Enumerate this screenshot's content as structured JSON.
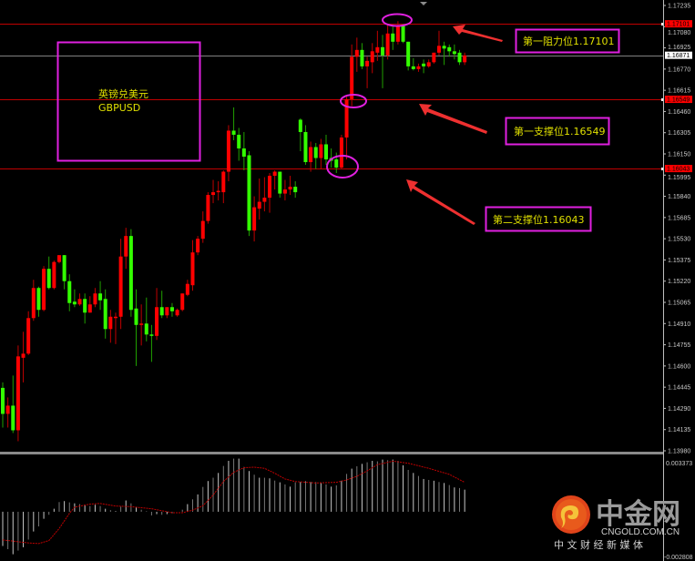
{
  "chart_data": {
    "type": "candlestick",
    "symbol_text": {
      "cn": "英镑兑美元",
      "en": "GBPUSD"
    },
    "colors": {
      "up": "#ff0000",
      "down": "#33ff00",
      "background": "#000000",
      "annotation": "#e020e0",
      "label_text": "#e0e000",
      "level_line": "#c00000",
      "current_price_line": "#808080"
    },
    "price_axis": {
      "ylim": [
        1.1398,
        1.17235
      ],
      "ticks": [
        "1.17235",
        "1.17080",
        "1.16925",
        "1.16770",
        "1.16615",
        "1.16460",
        "1.16305",
        "1.16150",
        "1.15995",
        "1.15840",
        "1.15685",
        "1.15530",
        "1.15375",
        "1.15220",
        "1.15065",
        "1.14910",
        "1.14755",
        "1.14600",
        "1.14445",
        "1.14290",
        "1.14135",
        "1.13980"
      ]
    },
    "current_price": "1.16871",
    "levels": [
      {
        "price": 1.17101,
        "tag": "1.17101",
        "label": "第一阻力位1.17101"
      },
      {
        "price": 1.16549,
        "tag": "1.16549",
        "label": "第一支撑位1.16549"
      },
      {
        "price": 1.16043,
        "tag": "1.16043",
        "label": "第二支撑位1.16043"
      }
    ],
    "ohlc": [
      [
        1.1444,
        1.1448,
        1.1415,
        1.1425
      ],
      [
        1.1425,
        1.1437,
        1.1415,
        1.1431
      ],
      [
        1.1431,
        1.1453,
        1.1411,
        1.1413
      ],
      [
        1.1413,
        1.1475,
        1.1405,
        1.1467
      ],
      [
        1.1466,
        1.1485,
        1.1448,
        1.1469
      ],
      [
        1.1469,
        1.15,
        1.1468,
        1.1495
      ],
      [
        1.1495,
        1.1523,
        1.1493,
        1.1517
      ],
      [
        1.1517,
        1.1518,
        1.1496,
        1.1501
      ],
      [
        1.1501,
        1.1533,
        1.15,
        1.1531
      ],
      [
        1.1531,
        1.154,
        1.1516,
        1.1517
      ],
      [
        1.1517,
        1.1537,
        1.1516,
        1.1536
      ],
      [
        1.1536,
        1.1541,
        1.1535,
        1.1541
      ],
      [
        1.1541,
        1.1541,
        1.1516,
        1.1522
      ],
      [
        1.1522,
        1.1527,
        1.15,
        1.1506
      ],
      [
        1.1507,
        1.1516,
        1.1503,
        1.1505
      ],
      [
        1.1505,
        1.1513,
        1.1504,
        1.1509
      ],
      [
        1.1509,
        1.1513,
        1.1491,
        1.1499
      ],
      [
        1.1499,
        1.1511,
        1.1499,
        1.1505
      ],
      [
        1.1505,
        1.1517,
        1.1503,
        1.1513
      ],
      [
        1.1513,
        1.1522,
        1.1501,
        1.1508
      ],
      [
        1.1509,
        1.1516,
        1.148,
        1.1487
      ],
      [
        1.1487,
        1.1501,
        1.1477,
        1.1496
      ],
      [
        1.1495,
        1.1499,
        1.1476,
        1.1496
      ],
      [
        1.1496,
        1.1553,
        1.1487,
        1.154
      ],
      [
        1.154,
        1.1561,
        1.1531,
        1.1555
      ],
      [
        1.1555,
        1.156,
        1.1496,
        1.1501
      ],
      [
        1.1502,
        1.1516,
        1.146,
        1.149
      ],
      [
        1.149,
        1.1505,
        1.1475,
        1.1491
      ],
      [
        1.1491,
        1.151,
        1.1478,
        1.1483
      ],
      [
        1.1483,
        1.149,
        1.1463,
        1.1482
      ],
      [
        1.1482,
        1.1517,
        1.1479,
        1.1503
      ],
      [
        1.1503,
        1.1515,
        1.1495,
        1.1497
      ],
      [
        1.1497,
        1.1503,
        1.1495,
        1.1503
      ],
      [
        1.1503,
        1.1506,
        1.1496,
        1.15
      ],
      [
        1.1497,
        1.1502,
        1.1496,
        1.1501
      ],
      [
        1.1501,
        1.1513,
        1.15,
        1.1513
      ],
      [
        1.1512,
        1.1523,
        1.1511,
        1.152
      ],
      [
        1.1519,
        1.1552,
        1.1515,
        1.1543
      ],
      [
        1.1543,
        1.1555,
        1.1541,
        1.1553
      ],
      [
        1.1553,
        1.1573,
        1.155,
        1.1566
      ],
      [
        1.1566,
        1.1587,
        1.1564,
        1.1585
      ],
      [
        1.1585,
        1.1596,
        1.1579,
        1.1587
      ],
      [
        1.1587,
        1.1595,
        1.1581,
        1.1588
      ],
      [
        1.1587,
        1.1603,
        1.1579,
        1.1602
      ],
      [
        1.1602,
        1.1636,
        1.1595,
        1.1632
      ],
      [
        1.1632,
        1.1649,
        1.1625,
        1.1629
      ],
      [
        1.1629,
        1.1634,
        1.161,
        1.1619
      ],
      [
        1.1619,
        1.1631,
        1.1603,
        1.1613
      ],
      [
        1.1614,
        1.1617,
        1.1555,
        1.1559
      ],
      [
        1.1559,
        1.1584,
        1.1551,
        1.1576
      ],
      [
        1.1575,
        1.1597,
        1.1567,
        1.158
      ],
      [
        1.158,
        1.1598,
        1.1573,
        1.1583
      ],
      [
        1.1583,
        1.1601,
        1.1572,
        1.1599
      ],
      [
        1.1599,
        1.1603,
        1.1589,
        1.1602
      ],
      [
        1.1602,
        1.1602,
        1.1583,
        1.1586
      ],
      [
        1.1586,
        1.1596,
        1.1581,
        1.1589
      ],
      [
        1.1589,
        1.1599,
        1.1585,
        1.1591
      ],
      [
        1.1591,
        1.1595,
        1.1583,
        1.1587
      ],
      [
        1.164,
        1.1641,
        1.1617,
        1.1631
      ],
      [
        1.1631,
        1.1636,
        1.1607,
        1.1609
      ],
      [
        1.1609,
        1.1624,
        1.1602,
        1.162
      ],
      [
        1.162,
        1.1623,
        1.1604,
        1.1612
      ],
      [
        1.1612,
        1.1626,
        1.1604,
        1.1622
      ],
      [
        1.1622,
        1.1629,
        1.1607,
        1.1611
      ],
      [
        1.1612,
        1.1619,
        1.1605,
        1.161
      ],
      [
        1.1611,
        1.1616,
        1.1601,
        1.1605
      ],
      [
        1.1605,
        1.1629,
        1.1604,
        1.1627
      ],
      [
        1.1627,
        1.1657,
        1.1611,
        1.1655
      ],
      [
        1.1655,
        1.1695,
        1.165,
        1.1686
      ],
      [
        1.1686,
        1.17,
        1.1675,
        1.1691
      ],
      [
        1.1691,
        1.1696,
        1.1677,
        1.1679
      ],
      [
        1.1679,
        1.1686,
        1.1663,
        1.1683
      ],
      [
        1.1682,
        1.1696,
        1.1674,
        1.169
      ],
      [
        1.1689,
        1.1705,
        1.1683,
        1.1693
      ],
      [
        1.1693,
        1.1702,
        1.1663,
        1.1687
      ],
      [
        1.1687,
        1.171,
        1.1684,
        1.1703
      ],
      [
        1.1703,
        1.1709,
        1.1691,
        1.1697
      ],
      [
        1.1697,
        1.1712,
        1.1695,
        1.1709
      ],
      [
        1.1709,
        1.171,
        1.1696,
        1.1697
      ],
      [
        1.1697,
        1.1697,
        1.1676,
        1.1679
      ],
      [
        1.1679,
        1.1685,
        1.1676,
        1.1677
      ],
      [
        1.1677,
        1.1681,
        1.1675,
        1.1679
      ],
      [
        1.1681,
        1.1684,
        1.1674,
        1.1679
      ],
      [
        1.1679,
        1.1684,
        1.1678,
        1.1682
      ],
      [
        1.1682,
        1.1689,
        1.1681,
        1.1689
      ],
      [
        1.1689,
        1.1705,
        1.1687,
        1.1694
      ],
      [
        1.1694,
        1.1697,
        1.168,
        1.1692
      ],
      [
        1.1693,
        1.1695,
        1.1686,
        1.169
      ],
      [
        1.169,
        1.1695,
        1.1684,
        1.1688
      ],
      [
        1.1689,
        1.1691,
        1.168,
        1.1682
      ],
      [
        1.1682,
        1.1689,
        1.168,
        1.1687
      ]
    ],
    "macd": {
      "ylim": [
        -0.002808,
        0.003373
      ],
      "top_label": "0.003373",
      "bottom_label": "-0.002808",
      "histogram": [
        -0.00215,
        -0.00235,
        -0.00267,
        -0.00244,
        -0.00223,
        -0.00175,
        -0.00124,
        -0.00092,
        -0.00044,
        -0.00019,
        0.00019,
        0.00061,
        0.00067,
        0.00059,
        0.00053,
        0.00048,
        0.0004,
        0.00036,
        0.00044,
        0.00036,
        0.00019,
        0.0001,
        4e-05,
        0.00032,
        0.00071,
        0.00053,
        0.00031,
        0.00013,
        2e-05,
        -0.00023,
        -0.00015,
        -0.00019,
        -0.00015,
        -0.0001,
        0.0,
        0.00013,
        0.00048,
        0.00078,
        0.00109,
        0.00156,
        0.00193,
        0.00214,
        0.00244,
        0.00288,
        0.0032,
        0.00334,
        0.00334,
        0.00282,
        0.00256,
        0.00233,
        0.00214,
        0.00214,
        0.0021,
        0.00196,
        0.00185,
        0.00172,
        0.00158,
        0.00185,
        0.00187,
        0.00193,
        0.00187,
        0.00187,
        0.00181,
        0.00172,
        0.00158,
        0.00166,
        0.00195,
        0.00238,
        0.00271,
        0.00286,
        0.00301,
        0.00311,
        0.0032,
        0.00317,
        0.00328,
        0.00324,
        0.00328,
        0.0032,
        0.00292,
        0.00263,
        0.00244,
        0.00225,
        0.00206,
        0.002,
        0.00195,
        0.00187,
        0.00181,
        0.00168,
        0.00153,
        0.00149,
        0.00139
      ],
      "signal": [
        [
          1,
          -0.00177
        ],
        [
          6,
          -0.00196
        ],
        [
          8,
          -0.002
        ],
        [
          10,
          -0.00181
        ],
        [
          12,
          -0.00105
        ],
        [
          14,
          -0.0001
        ],
        [
          15,
          0.00029
        ],
        [
          18,
          0.00048
        ],
        [
          20,
          0.00052
        ],
        [
          23,
          0.00036
        ],
        [
          26,
          0.00032
        ],
        [
          30,
          0.00019
        ],
        [
          34,
          -6e-05
        ],
        [
          36,
          -6e-05
        ],
        [
          38,
          0.0001
        ],
        [
          40,
          0.00038
        ],
        [
          42,
          0.00105
        ],
        [
          44,
          0.0019
        ],
        [
          46,
          0.00248
        ],
        [
          48,
          0.00277
        ],
        [
          50,
          0.0028
        ],
        [
          52,
          0.00273
        ],
        [
          54,
          0.00242
        ],
        [
          56,
          0.00206
        ],
        [
          58,
          0.0019
        ],
        [
          62,
          0.00181
        ],
        [
          66,
          0.00185
        ],
        [
          68,
          0.002
        ],
        [
          70,
          0.00223
        ],
        [
          72,
          0.00257
        ],
        [
          74,
          0.00296
        ],
        [
          77,
          0.00318
        ],
        [
          80,
          0.00305
        ],
        [
          84,
          0.00273
        ],
        [
          88,
          0.00235
        ],
        [
          91,
          0.00185
        ]
      ]
    }
  },
  "logo": {
    "name": "中金网",
    "domain": "CNGOLD.COM.CN",
    "slogan": "中 文 财 经 新 媒 体"
  }
}
